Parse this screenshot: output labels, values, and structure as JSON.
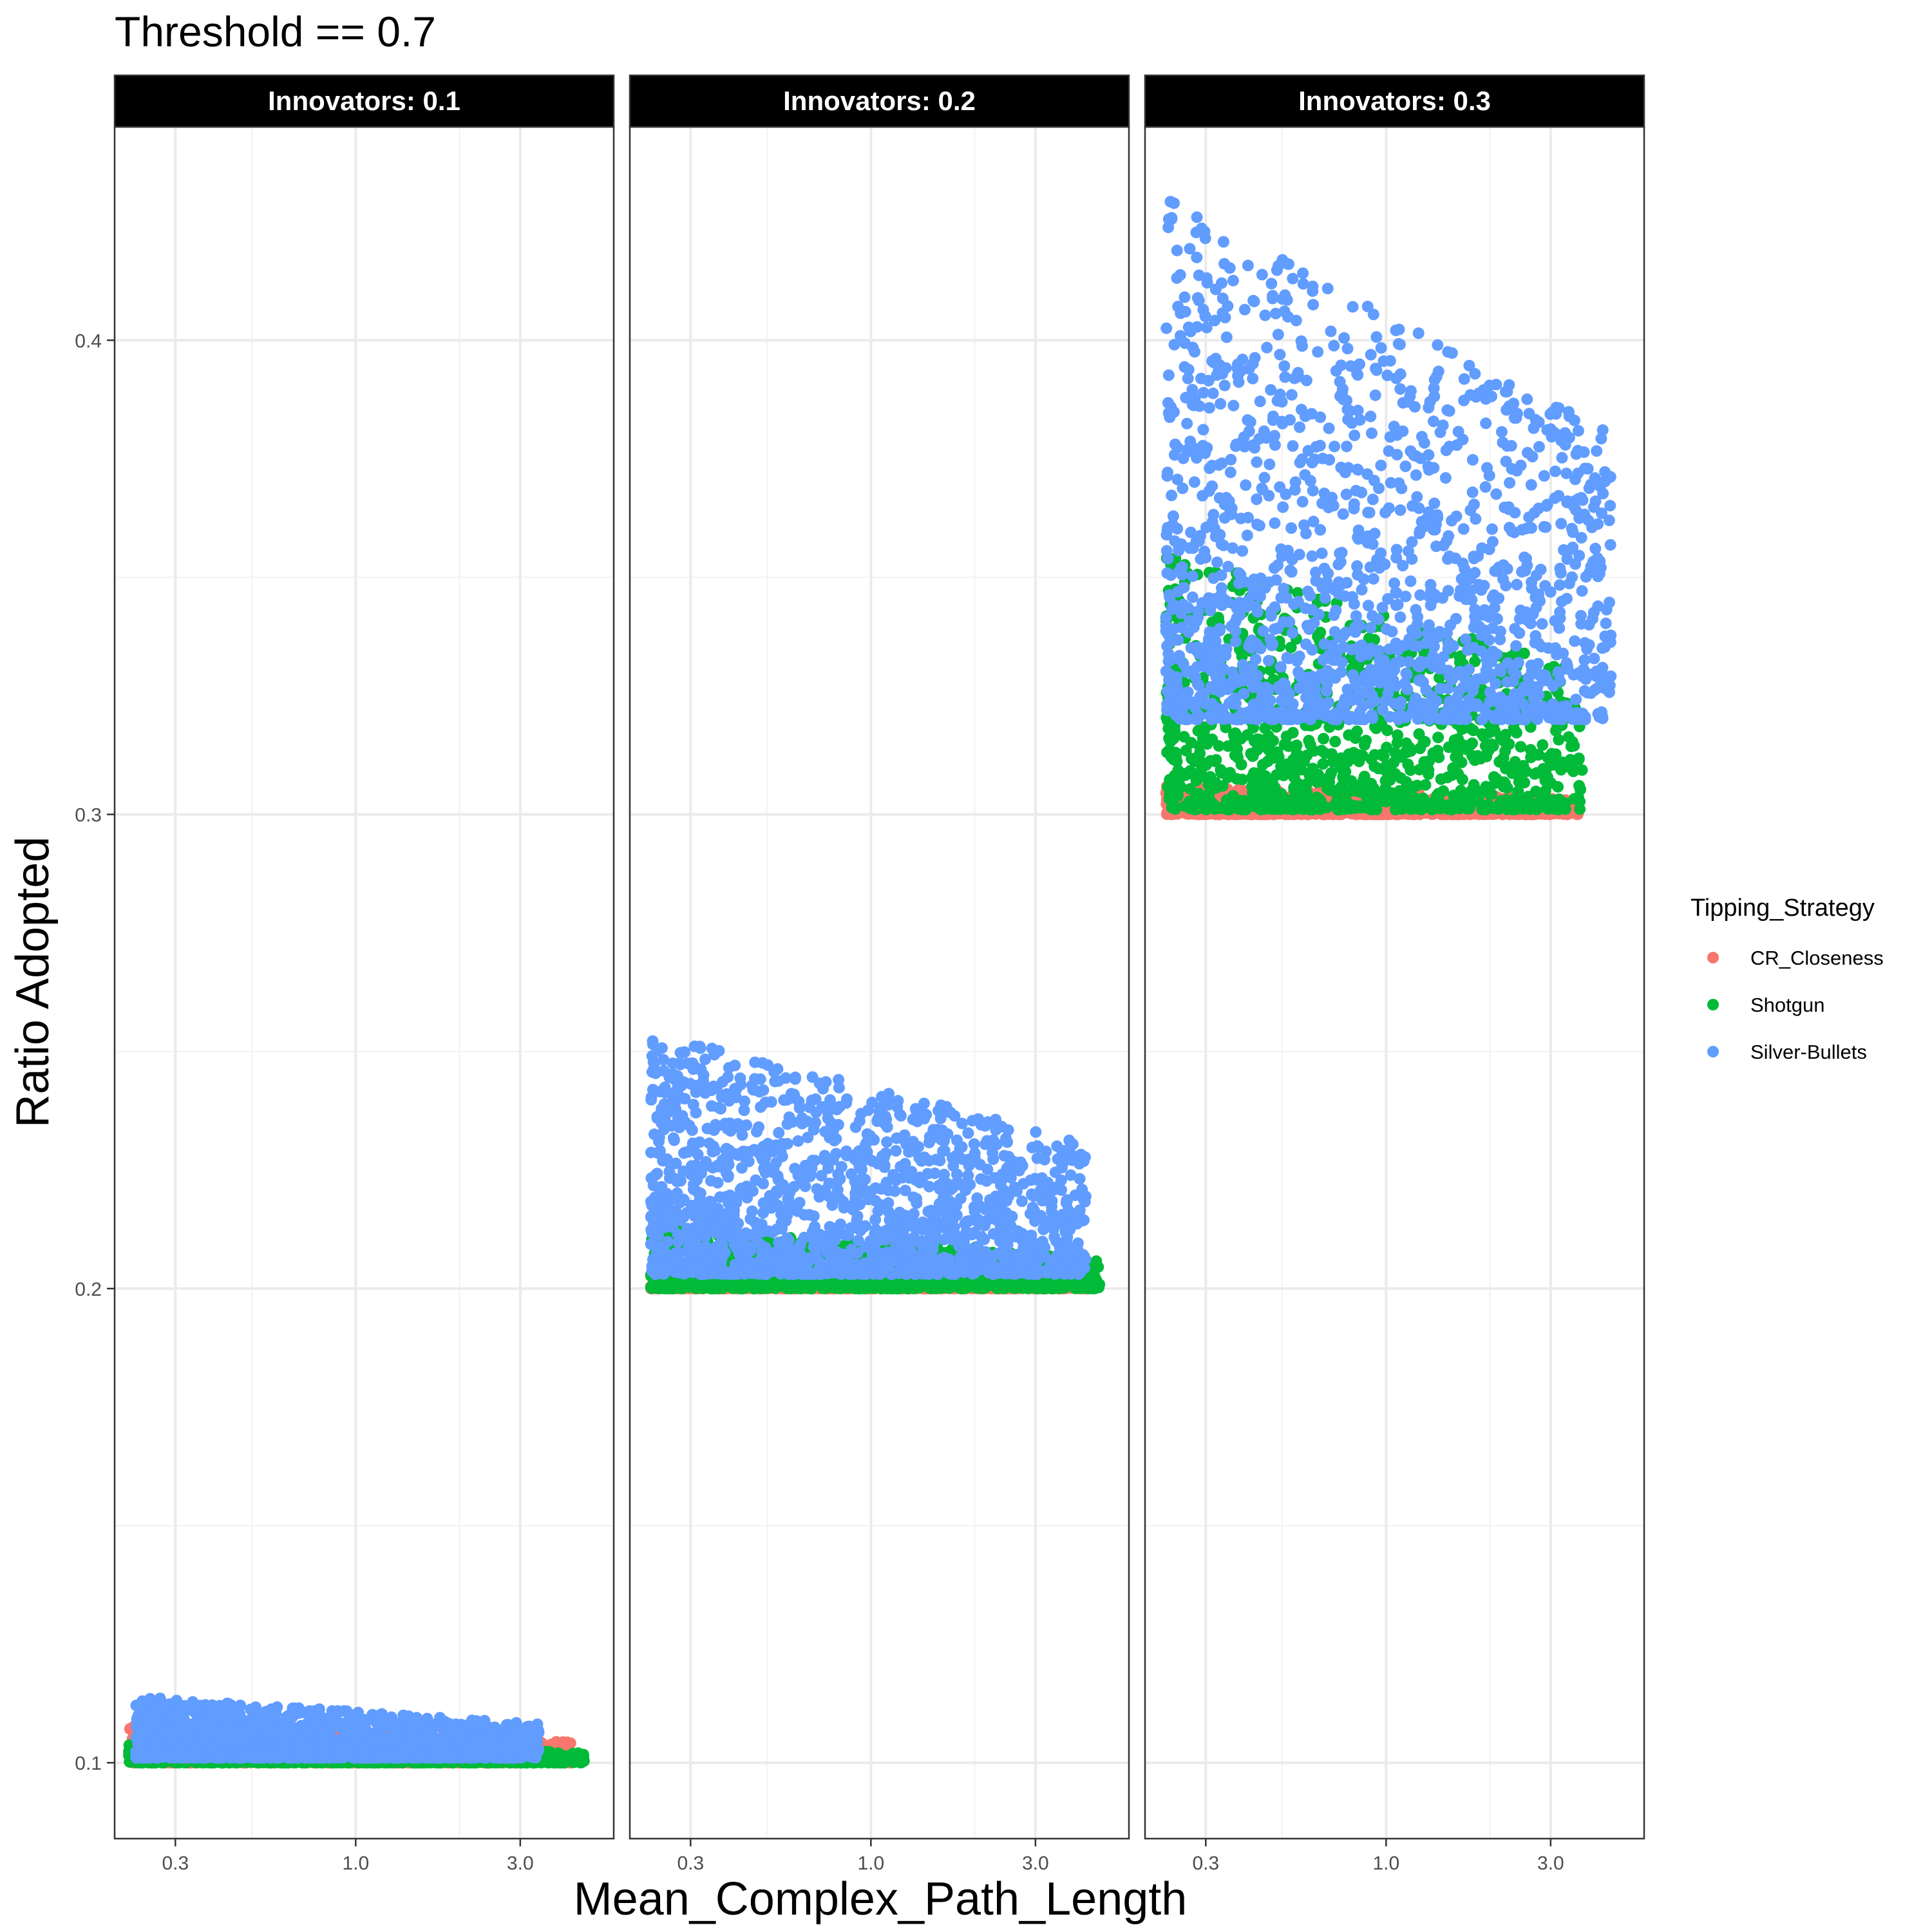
{
  "chart_data": {
    "type": "scatter",
    "title": "Threshold == 0.7",
    "xlabel": "Mean_Complex_Path_Length",
    "ylabel": "Ratio Adopted",
    "x_scale": "log10",
    "xlim": [
      0.2,
      5.6
    ],
    "ylim": [
      0.084,
      0.445
    ],
    "x_ticks": [
      0.3,
      1.0,
      3.0
    ],
    "x_tick_labels": [
      "0.3",
      "1.0",
      "3.0"
    ],
    "y_ticks": [
      0.1,
      0.2,
      0.3,
      0.4
    ],
    "y_tick_labels": [
      "0.1",
      "0.2",
      "0.3",
      "0.4"
    ],
    "grid": true,
    "legend": {
      "title": "Tipping_Strategy",
      "position": "right",
      "entries": [
        "CR_Closeness",
        "Shotgun",
        "Silver-Bullets"
      ]
    },
    "colors": {
      "CR_Closeness": "#F8766D",
      "Shotgun": "#00BA38",
      "Silver-Bullets": "#619CFF"
    },
    "panels": [
      {
        "label": "Innovators: 0.1",
        "series": [
          {
            "name": "CR_Closeness",
            "x_range": [
              0.22,
              4.2
            ],
            "y_range": [
              0.1,
              0.108
            ]
          },
          {
            "name": "Shotgun",
            "x_range": [
              0.22,
              4.6
            ],
            "y_range": [
              0.1,
              0.104
            ]
          },
          {
            "name": "Silver-Bullets",
            "x_range": [
              0.23,
              3.4
            ],
            "y_range": [
              0.101,
              0.114
            ]
          }
        ]
      },
      {
        "label": "Innovators: 0.2",
        "series": [
          {
            "name": "CR_Closeness",
            "x_range": [
              0.23,
              4.4
            ],
            "y_range": [
              0.2,
              0.201
            ]
          },
          {
            "name": "Shotgun",
            "x_range": [
              0.23,
              4.6
            ],
            "y_range": [
              0.2,
              0.213
            ]
          },
          {
            "name": "Silver-Bullets",
            "x_range": [
              0.23,
              4.2
            ],
            "y_range": [
              0.203,
              0.254
            ]
          }
        ]
      },
      {
        "label": "Innovators: 0.3",
        "series": [
          {
            "name": "CR_Closeness",
            "x_range": [
              0.23,
              3.6
            ],
            "y_range": [
              0.3,
              0.306
            ]
          },
          {
            "name": "Shotgun",
            "x_range": [
              0.23,
              3.7
            ],
            "y_range": [
              0.301,
              0.355
            ]
          },
          {
            "name": "Silver-Bullets",
            "x_range": [
              0.23,
              4.5
            ],
            "y_range": [
              0.32,
              0.43
            ]
          }
        ]
      }
    ]
  }
}
